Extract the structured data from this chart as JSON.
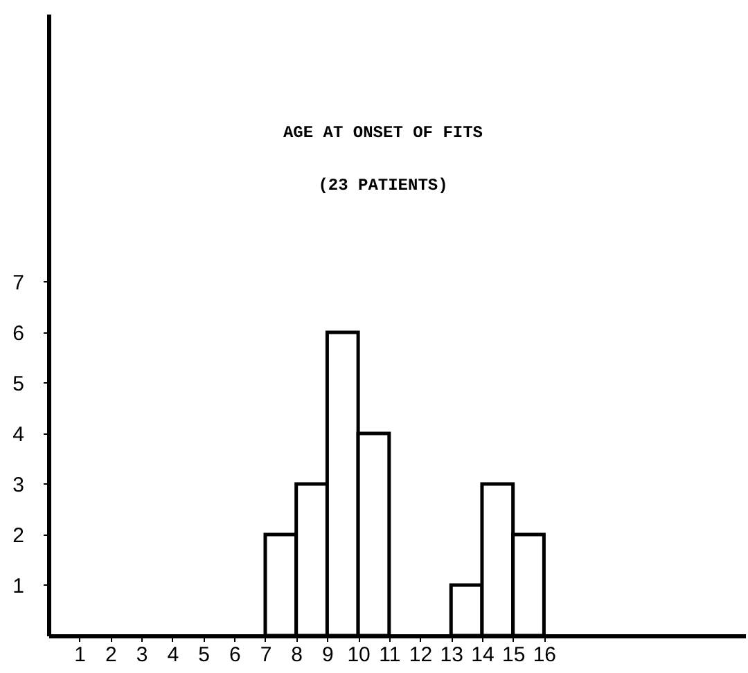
{
  "chart_data": {
    "type": "histogram",
    "title": "AGE AT ONSET OF FITS",
    "subtitle": "(23 PATIENTS)",
    "bins": [
      7,
      8,
      9,
      10,
      11,
      12,
      13,
      14,
      15,
      16
    ],
    "values": [
      2,
      3,
      6,
      4,
      0,
      0,
      1,
      3,
      2
    ],
    "color": "#ffffff",
    "xlim": [
      0,
      22.5
    ],
    "xticks": [
      1,
      2,
      3,
      4,
      5,
      6,
      7,
      8,
      9,
      10,
      11,
      12,
      13,
      14,
      15,
      16
    ],
    "ylim": [
      0,
      12.3
    ],
    "yticks": [
      1,
      2,
      3,
      4,
      5,
      6,
      7
    ]
  }
}
